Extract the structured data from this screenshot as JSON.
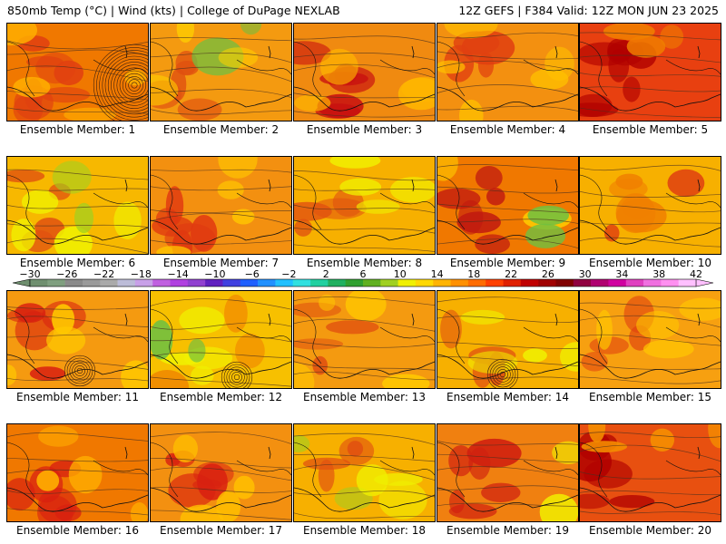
{
  "header": {
    "left": "850mb Temp (°C) | Wind (kts) | College of DuPage NEXLAB",
    "right": "12Z GEFS | F384 Valid: 12Z MON JUN 23 2025"
  },
  "member_label": "Ensemble Member:",
  "colorbar": {
    "labels": [
      "−30",
      "−26",
      "−22",
      "−18",
      "−14",
      "−10",
      "−6",
      "−2",
      "2",
      "6",
      "10",
      "14",
      "18",
      "22",
      "26",
      "30",
      "34",
      "38",
      "42"
    ],
    "colors": [
      "#6f8f6f",
      "#7f9f7f",
      "#8a8a8a",
      "#9a9a9a",
      "#aaaaaa",
      "#bcbcd8",
      "#c8a0e8",
      "#c060e0",
      "#b040e0",
      "#9040d0",
      "#6020c0",
      "#4040e0",
      "#2060ff",
      "#2090ff",
      "#20c0ff",
      "#30e0e0",
      "#20d0a0",
      "#20b060",
      "#30a030",
      "#60b020",
      "#a0d020",
      "#f0f000",
      "#ffd800",
      "#ffb400",
      "#ff9000",
      "#ff6c00",
      "#ff4000",
      "#e02000",
      "#c00000",
      "#a00000",
      "#800000",
      "#900040",
      "#b00070",
      "#d000a0",
      "#e040c0",
      "#f070e0",
      "#ff90f0",
      "#ffc0ff"
    ]
  },
  "members": [
    {
      "number": "1",
      "base": "#f07800",
      "highlights": [
        {
          "c": "#e04010",
          "w": 0.55
        },
        {
          "c": "#ffb000",
          "w": 0.25
        }
      ],
      "low": true
    },
    {
      "number": "2",
      "base": "#f49a10",
      "highlights": [
        {
          "c": "#e05010",
          "w": 0.35
        },
        {
          "c": "#70c040",
          "w": 0.12
        },
        {
          "c": "#ffd000",
          "w": 0.2
        }
      ],
      "low": false
    },
    {
      "number": "3",
      "base": "#f08a10",
      "highlights": [
        {
          "c": "#c81010",
          "w": 0.4
        },
        {
          "c": "#ffb800",
          "w": 0.25
        }
      ],
      "low": false
    },
    {
      "number": "4",
      "base": "#f39010",
      "highlights": [
        {
          "c": "#e04010",
          "w": 0.3
        },
        {
          "c": "#ffc000",
          "w": 0.35
        }
      ],
      "low": false
    },
    {
      "number": "5",
      "base": "#e84010",
      "highlights": [
        {
          "c": "#b00000",
          "w": 0.55
        },
        {
          "c": "#f08000",
          "w": 0.2
        }
      ],
      "low": false
    },
    {
      "number": "6",
      "base": "#f7b800",
      "highlights": [
        {
          "c": "#e05010",
          "w": 0.25
        },
        {
          "c": "#f0f000",
          "w": 0.25
        },
        {
          "c": "#a0d020",
          "w": 0.08
        }
      ],
      "low": false
    },
    {
      "number": "7",
      "base": "#f39010",
      "highlights": [
        {
          "c": "#e03810",
          "w": 0.4
        },
        {
          "c": "#ffc800",
          "w": 0.25
        }
      ],
      "low": false
    },
    {
      "number": "8",
      "base": "#f7b000",
      "highlights": [
        {
          "c": "#e05010",
          "w": 0.25
        },
        {
          "c": "#f0f000",
          "w": 0.3
        }
      ],
      "low": false
    },
    {
      "number": "9",
      "base": "#f07800",
      "highlights": [
        {
          "c": "#c01810",
          "w": 0.45
        },
        {
          "c": "#ffd000",
          "w": 0.15
        },
        {
          "c": "#70c040",
          "w": 0.06
        }
      ],
      "low": false
    },
    {
      "number": "10",
      "base": "#f7b000",
      "highlights": [
        {
          "c": "#f08000",
          "w": 0.35
        },
        {
          "c": "#e04010",
          "w": 0.15
        }
      ],
      "low": false
    },
    {
      "number": "11",
      "base": "#f59a10",
      "highlights": [
        {
          "c": "#d82010",
          "w": 0.35
        },
        {
          "c": "#ffc800",
          "w": 0.25
        }
      ],
      "low": true
    },
    {
      "number": "12",
      "base": "#f7c000",
      "highlights": [
        {
          "c": "#f0f000",
          "w": 0.3
        },
        {
          "c": "#70c040",
          "w": 0.1
        },
        {
          "c": "#f08000",
          "w": 0.2
        }
      ],
      "low": true
    },
    {
      "number": "13",
      "base": "#f49a10",
      "highlights": [
        {
          "c": "#e05010",
          "w": 0.25
        },
        {
          "c": "#ffc800",
          "w": 0.3
        }
      ],
      "low": false
    },
    {
      "number": "14",
      "base": "#f7b000",
      "highlights": [
        {
          "c": "#e05010",
          "w": 0.25
        },
        {
          "c": "#f0f000",
          "w": 0.25
        }
      ],
      "low": true
    },
    {
      "number": "15",
      "base": "#f7a010",
      "highlights": [
        {
          "c": "#e04010",
          "w": 0.25
        },
        {
          "c": "#ffc800",
          "w": 0.3
        }
      ],
      "low": false
    },
    {
      "number": "16",
      "base": "#f07800",
      "highlights": [
        {
          "c": "#d82010",
          "w": 0.45
        },
        {
          "c": "#ffb000",
          "w": 0.25
        }
      ],
      "low": false
    },
    {
      "number": "17",
      "base": "#f39010",
      "highlights": [
        {
          "c": "#d82010",
          "w": 0.4
        },
        {
          "c": "#ffc000",
          "w": 0.25
        }
      ],
      "low": false
    },
    {
      "number": "18",
      "base": "#f7b000",
      "highlights": [
        {
          "c": "#e05010",
          "w": 0.3
        },
        {
          "c": "#a0d020",
          "w": 0.12
        },
        {
          "c": "#f0f000",
          "w": 0.2
        }
      ],
      "low": false
    },
    {
      "number": "19",
      "base": "#f08010",
      "highlights": [
        {
          "c": "#d02010",
          "w": 0.45
        },
        {
          "c": "#f0f000",
          "w": 0.15
        }
      ],
      "low": false
    },
    {
      "number": "20",
      "base": "#e85010",
      "highlights": [
        {
          "c": "#b00000",
          "w": 0.45
        },
        {
          "c": "#f59000",
          "w": 0.25
        }
      ],
      "low": false
    }
  ]
}
